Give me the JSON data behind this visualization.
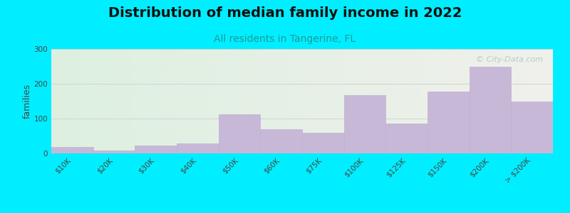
{
  "title": "Distribution of median family income in 2022",
  "subtitle": "All residents in Tangerine, FL",
  "ylabel": "families",
  "categories": [
    "$10K",
    "$20K",
    "$30K",
    "$40K",
    "$50K",
    "$60K",
    "$75K",
    "$100K",
    "$125K",
    "$150K",
    "$200K",
    "> $200K"
  ],
  "values": [
    18,
    8,
    22,
    28,
    112,
    70,
    60,
    168,
    85,
    178,
    248,
    150
  ],
  "bar_color": "#c8b8d8",
  "bar_edge_color": "#c0b0d0",
  "ylim": [
    0,
    300
  ],
  "yticks": [
    0,
    100,
    200,
    300
  ],
  "background_outer": "#00eeff",
  "bg_left": "#ddf0e0",
  "bg_right": "#f0f0ec",
  "grid_color": "#cccccc",
  "title_fontsize": 14,
  "subtitle_fontsize": 10,
  "subtitle_color": "#209898",
  "ylabel_fontsize": 9,
  "tick_fontsize": 7.5,
  "watermark_text": "© City-Data.com",
  "watermark_color": "#aac8c8"
}
